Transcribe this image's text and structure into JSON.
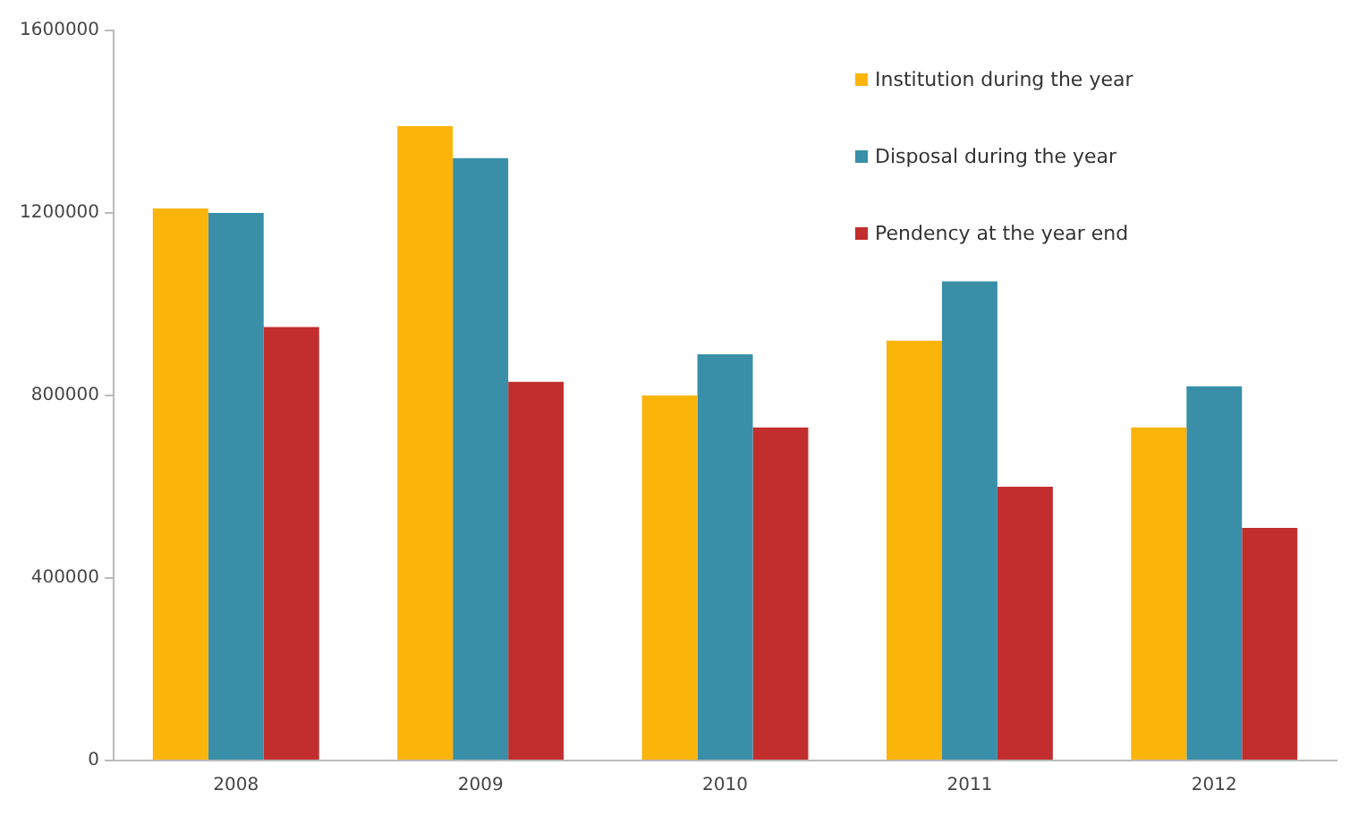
{
  "chart_data": {
    "type": "bar",
    "categories": [
      "2008",
      "2009",
      "2010",
      "2011",
      "2012"
    ],
    "series": [
      {
        "name": "Institution during the year",
        "color": "#fbb40a",
        "values": [
          1210000,
          1390000,
          800000,
          920000,
          730000
        ]
      },
      {
        "name": "Disposal during the year",
        "color": "#3a8fa8",
        "values": [
          1200000,
          1320000,
          890000,
          1050000,
          820000
        ]
      },
      {
        "name": "Pendency at the year end",
        "color": "#c22e2e",
        "values": [
          950000,
          830000,
          730000,
          600000,
          510000
        ]
      }
    ],
    "ylim": [
      0,
      1600000
    ],
    "yticks": [
      0,
      400000,
      800000,
      1200000,
      1600000
    ],
    "grid": false,
    "legend": "top right"
  }
}
